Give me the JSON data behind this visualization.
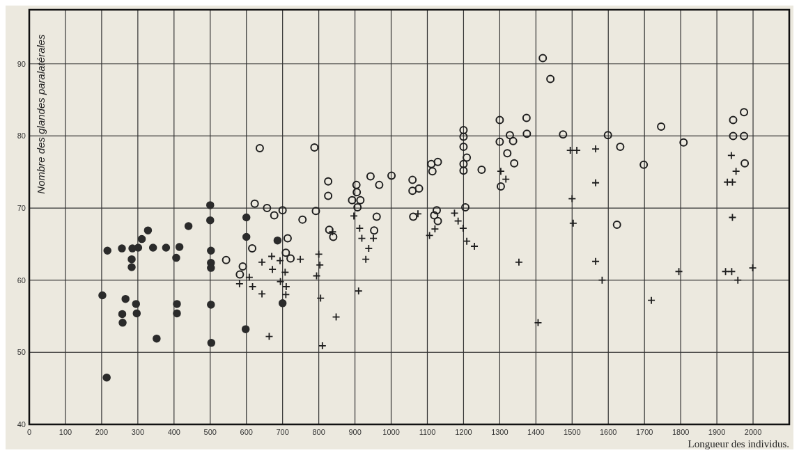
{
  "chart_data": {
    "type": "scatter",
    "xlabel": "Longueur des individus.",
    "ylabel": "Nombre des glandes paralatérales",
    "xlim": [
      0,
      2100
    ],
    "ylim": [
      40,
      97.5
    ],
    "xticks": [
      0,
      100,
      200,
      300,
      400,
      500,
      600,
      700,
      800,
      900,
      1000,
      1100,
      1200,
      1300,
      1400,
      1500,
      1600,
      1700,
      1800,
      1900,
      2000
    ],
    "yticks": [
      40,
      50,
      60,
      70,
      80,
      90
    ],
    "grid": true,
    "series": [
      {
        "marker": "circle",
        "color": "#2b2b2b",
        "x": [
          216,
          256,
          285,
          301,
          311,
          328,
          342,
          378,
          415,
          406,
          283,
          283,
          440,
          500,
          500,
          502,
          502,
          502,
          502,
          503,
          600,
          600,
          598,
          686,
          700,
          202,
          266,
          295,
          297,
          257,
          258,
          352,
          408,
          408,
          214
        ],
        "values": [
          64.1,
          64.4,
          64.4,
          64.5,
          65.7,
          66.9,
          64.5,
          64.5,
          64.6,
          63.1,
          62.9,
          61.8,
          67.5,
          70.4,
          68.3,
          64.1,
          62.4,
          61.7,
          56.6,
          51.3,
          68.7,
          66.0,
          53.2,
          65.5,
          56.8,
          57.9,
          57.4,
          56.7,
          55.4,
          55.3,
          54.1,
          51.9,
          56.7,
          55.4,
          46.5
        ]
      },
      {
        "marker": "circle-open",
        "color": "#1e1e1e",
        "x": [
          637,
          788,
          623,
          657,
          677,
          700,
          714,
          709,
          616,
          755,
          792,
          826,
          826,
          829,
          840,
          904,
          905,
          892,
          915,
          907,
          943,
          967,
          1001,
          960,
          953,
          1059,
          1059,
          1077,
          1061,
          1111,
          1129,
          1114,
          1126,
          1119,
          1129,
          1200,
          1200,
          1200,
          1209,
          1200,
          1200,
          1250,
          1205,
          1300,
          1300,
          1328,
          1337,
          1321,
          1340,
          1303,
          1374,
          1375,
          1419,
          1440,
          1475,
          1599,
          1633,
          1746,
          1698,
          1624,
          1808,
          1945,
          1975,
          1945,
          1975,
          1977,
          722,
          544,
          590,
          582
        ],
        "values": [
          78.3,
          78.4,
          70.6,
          70.0,
          69.0,
          69.7,
          65.8,
          63.8,
          64.4,
          68.4,
          69.6,
          73.7,
          71.7,
          67.0,
          66.0,
          73.2,
          72.2,
          71.1,
          71.1,
          70.1,
          74.4,
          73.2,
          74.5,
          68.8,
          66.9,
          73.9,
          72.4,
          72.7,
          68.8,
          76.1,
          76.4,
          75.1,
          69.7,
          69.0,
          68.2,
          80.8,
          79.9,
          78.5,
          77.0,
          76.1,
          75.2,
          75.3,
          70.1,
          82.2,
          79.2,
          80.1,
          79.3,
          77.6,
          76.2,
          73.0,
          82.5,
          80.3,
          90.8,
          87.9,
          80.2,
          80.1,
          78.5,
          81.3,
          76.0,
          67.7,
          79.1,
          82.2,
          83.3,
          80.0,
          80.0,
          76.2,
          63.0,
          62.8,
          61.9,
          60.8
        ]
      },
      {
        "marker": "cross",
        "color": "#1e1e1e",
        "x": [
          608,
          581,
          617,
          643,
          643,
          670,
          672,
          693,
          707,
          694,
          710,
          709,
          663,
          749,
          800,
          803,
          794,
          805,
          848,
          810,
          838,
          897,
          913,
          919,
          951,
          938,
          930,
          910,
          1074,
          1121,
          1106,
          1175,
          1185,
          1199,
          1209,
          1230,
          1353,
          1406,
          1303,
          1317,
          1495,
          1513,
          1565,
          1565,
          1500,
          1503,
          1565,
          1583,
          1719,
          1795,
          1940,
          1953,
          1929,
          1943,
          1943,
          1924,
          1941,
          1958,
          1999
        ],
        "values": [
          60.4,
          59.5,
          59.1,
          62.5,
          58.1,
          63.3,
          61.5,
          62.7,
          61.1,
          59.8,
          59.1,
          58.0,
          52.2,
          62.9,
          63.6,
          62.1,
          60.6,
          57.5,
          54.9,
          50.9,
          66.7,
          68.9,
          67.2,
          65.8,
          65.8,
          64.4,
          62.9,
          58.5,
          69.2,
          67.1,
          66.2,
          69.3,
          68.2,
          67.2,
          65.4,
          64.7,
          62.5,
          54.1,
          75.1,
          74.0,
          78.0,
          78.0,
          78.2,
          73.5,
          71.3,
          67.9,
          62.6,
          60.0,
          57.2,
          61.2,
          77.3,
          75.1,
          73.6,
          73.6,
          68.7,
          61.2,
          61.2,
          60.0,
          61.7
        ]
      }
    ]
  }
}
